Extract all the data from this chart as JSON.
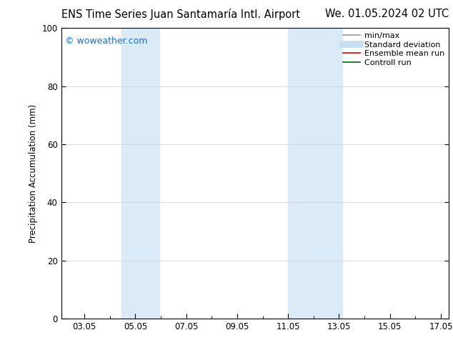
{
  "title_left": "ENS Time Series Juan Santamaría Intl. Airport",
  "title_right": "We. 01.05.2024 02 UTC",
  "ylabel": "Precipitation Accumulation (mm)",
  "ylim": [
    0,
    100
  ],
  "yticks": [
    0,
    20,
    40,
    60,
    80,
    100
  ],
  "xtick_labels": [
    "03.05",
    "05.05",
    "07.05",
    "09.05",
    "11.05",
    "13.05",
    "15.05",
    "17.05"
  ],
  "xtick_positions_days": [
    3,
    5,
    7,
    9,
    11,
    13,
    15,
    17
  ],
  "x_min": 2.0833,
  "x_max": 17.3,
  "shaded_bands": [
    {
      "x_start_day": 4.45,
      "x_end_day": 5.95,
      "color": "#daeaf7"
    },
    {
      "x_start_day": 11.0,
      "x_end_day": 13.12,
      "color": "#daeaf7"
    }
  ],
  "watermark_text": "© woweather.com",
  "watermark_color": "#1a6fcc",
  "legend_entries": [
    {
      "label": "min/max",
      "color": "#999999",
      "lw": 1.2,
      "ls": "-"
    },
    {
      "label": "Standard deviation",
      "color": "#c8dff0",
      "lw": 7,
      "ls": "-"
    },
    {
      "label": "Ensemble mean run",
      "color": "#dd0000",
      "lw": 1.2,
      "ls": "-"
    },
    {
      "label": "Controll run",
      "color": "#006600",
      "lw": 1.2,
      "ls": "-"
    }
  ],
  "background_color": "#ffffff",
  "grid_color": "#cccccc",
  "title_fontsize": 10.5,
  "axis_fontsize": 8.5,
  "tick_fontsize": 8.5,
  "legend_fontsize": 8.0
}
